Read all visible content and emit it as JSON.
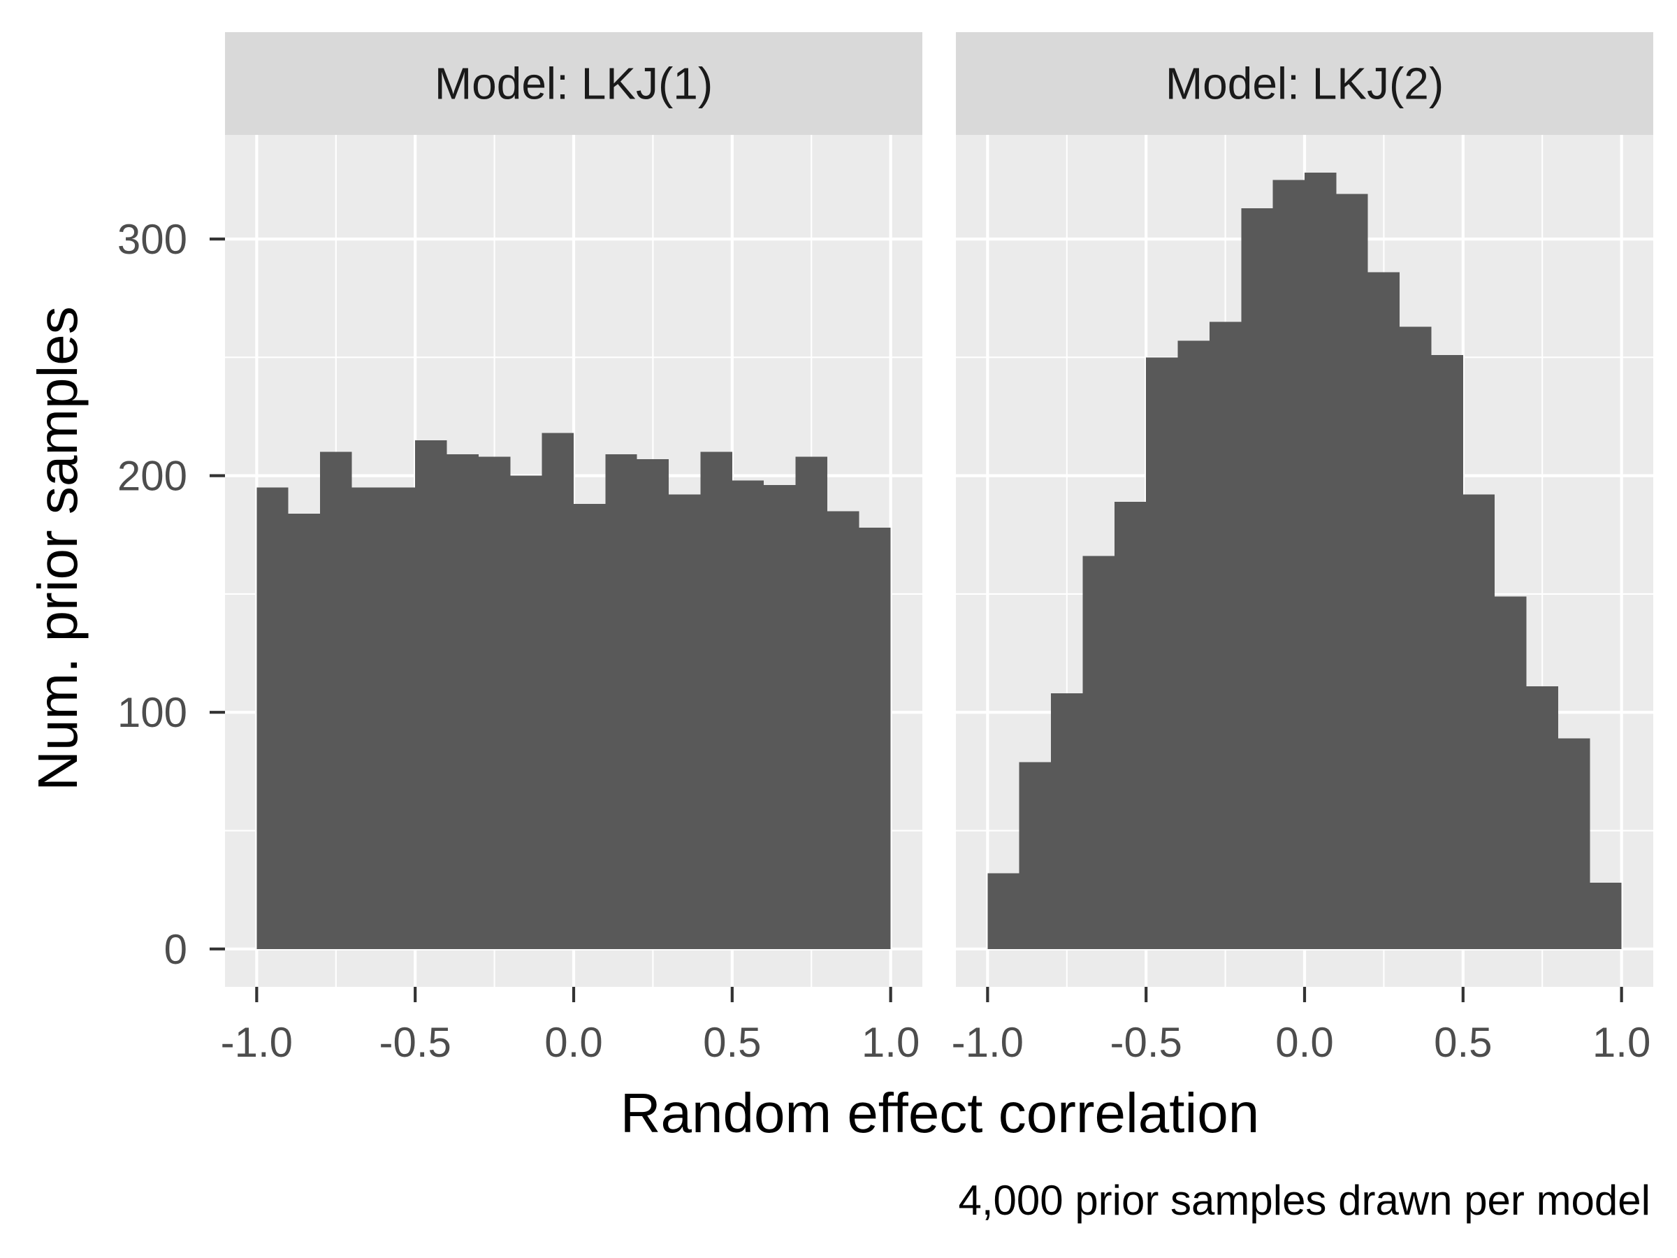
{
  "chart_data": {
    "type": "bar",
    "xlabel": "Random effect correlation",
    "ylabel": "Num. prior samples",
    "caption": "4,000 prior samples drawn per model",
    "xlim": [
      -1.1,
      1.1
    ],
    "ylim": [
      -16,
      344
    ],
    "x_breaks": [
      -1.0,
      -0.5,
      0.0,
      0.5,
      1.0
    ],
    "x_tick_labels": [
      "-1.0",
      "-0.5",
      "0.0",
      "0.5",
      "1.0"
    ],
    "y_breaks": [
      0,
      100,
      200,
      300
    ],
    "y_tick_labels": [
      "0",
      "100",
      "200",
      "300"
    ],
    "grid": true,
    "bins": [
      -1.0,
      -0.9,
      -0.8,
      -0.7,
      -0.6,
      -0.5,
      -0.4,
      -0.3,
      -0.2,
      -0.1,
      0.0,
      0.1,
      0.2,
      0.3,
      0.4,
      0.5,
      0.6,
      0.7,
      0.8,
      0.9,
      1.0
    ],
    "panels": [
      {
        "strip": "Model: LKJ(1)",
        "values": [
          195,
          184,
          210,
          195,
          195,
          215,
          209,
          208,
          200,
          218,
          188,
          209,
          207,
          192,
          210,
          198,
          196,
          208,
          185,
          178
        ]
      },
      {
        "strip": "Model: LKJ(2)",
        "values": [
          32,
          79,
          108,
          166,
          189,
          250,
          257,
          265,
          313,
          325,
          328,
          319,
          286,
          263,
          251,
          192,
          149,
          111,
          89,
          28
        ]
      }
    ]
  }
}
